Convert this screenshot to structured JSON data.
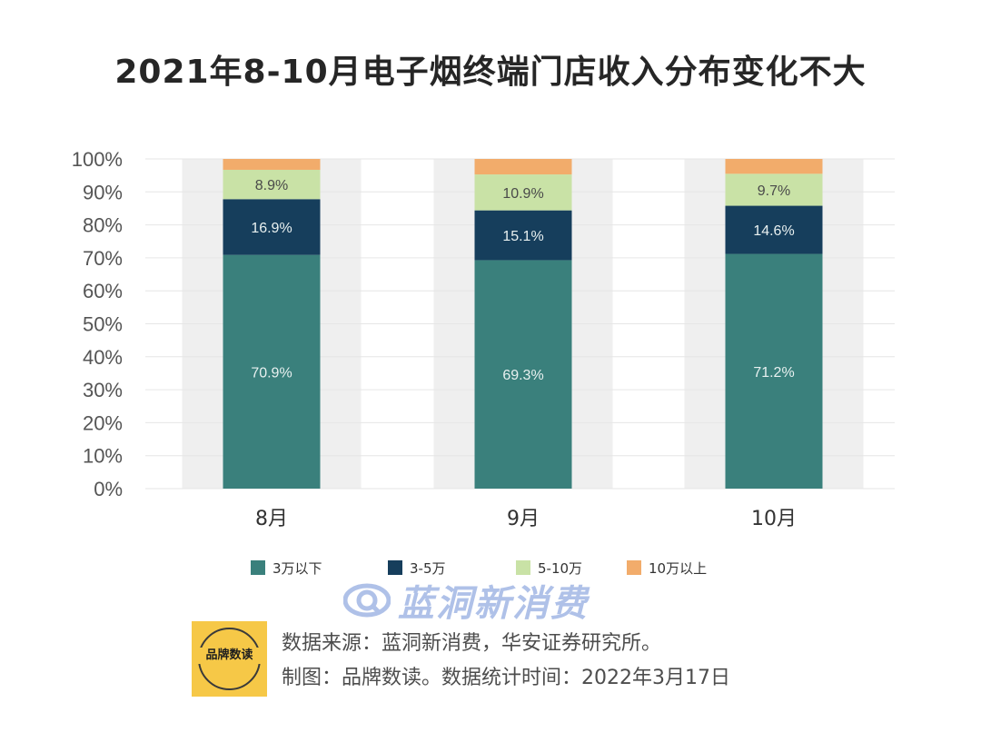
{
  "title": "2021年8-10月电子烟终端门店收入分布变化不大",
  "chart_data": {
    "type": "bar",
    "stacked": true,
    "categories": [
      "8月",
      "9月",
      "10月"
    ],
    "series": [
      {
        "name": "3万以下",
        "color": "#3a807c",
        "values": [
          70.9,
          69.3,
          71.2
        ],
        "labels": [
          "70.9%",
          "69.3%",
          "71.2%"
        ]
      },
      {
        "name": "3-5万",
        "color": "#163e5c",
        "values": [
          16.9,
          15.1,
          14.6
        ],
        "labels": [
          "16.9%",
          "15.1%",
          "14.6%"
        ]
      },
      {
        "name": "5-10万",
        "color": "#c9e2a6",
        "values": [
          8.9,
          10.9,
          9.7
        ],
        "labels": [
          "8.9%",
          "10.9%",
          "9.7%"
        ]
      },
      {
        "name": "10万以上",
        "color": "#f2ac6b",
        "values": [
          3.3,
          4.7,
          4.5
        ],
        "labels": [
          "",
          "",
          ""
        ]
      }
    ],
    "yticks": [
      "0%",
      "10%",
      "20%",
      "30%",
      "40%",
      "50%",
      "60%",
      "70%",
      "80%",
      "90%",
      "100%"
    ],
    "ylim": [
      0,
      100
    ],
    "grid": true,
    "legend_position": "bottom"
  },
  "watermark": {
    "text": "蓝洞新消费"
  },
  "logo": {
    "text": "品牌数读"
  },
  "footer": {
    "source": "数据来源：蓝洞新消费，华安证券研究所。",
    "credit": "制图：品牌数读。数据统计时间：2022年3月17日"
  }
}
